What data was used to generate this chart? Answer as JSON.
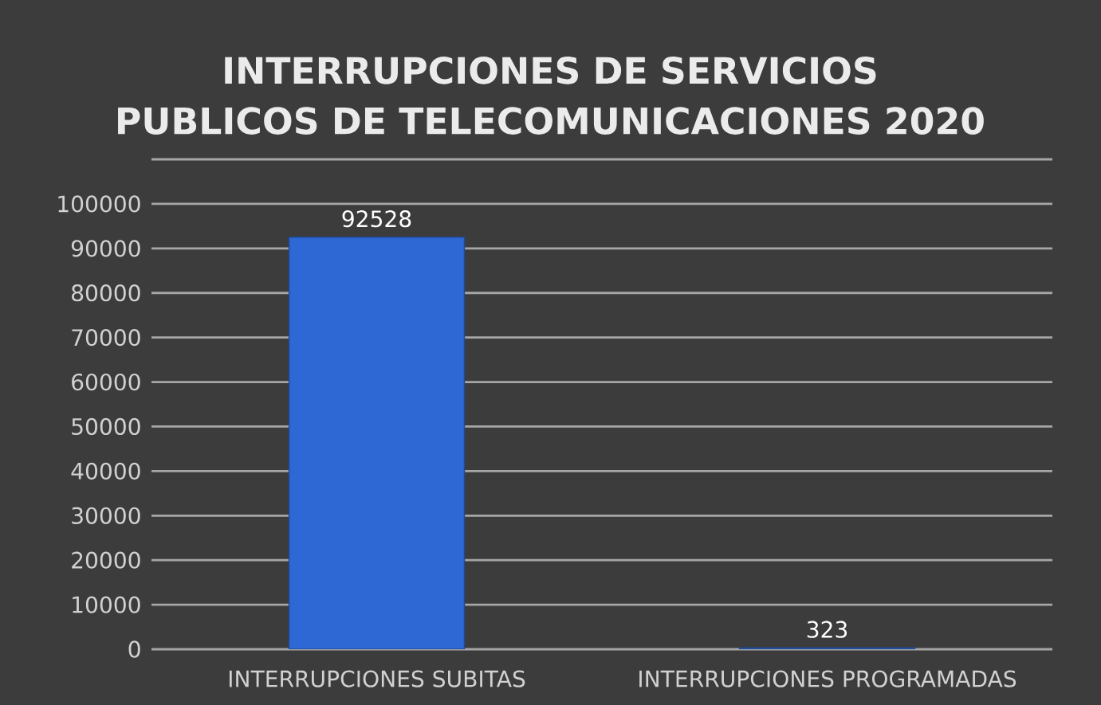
{
  "chart_data": {
    "type": "bar",
    "title": "INTERRUPCIONES DE SERVICIOS PUBLICOS DE TELECOMUNICACIONES 2020",
    "categories": [
      "INTERRUPCIONES SUBITAS",
      "INTERRUPCIONES PROGRAMADAS"
    ],
    "values": [
      92528,
      323
    ],
    "color": "#2e68d4",
    "ylim": [
      0,
      110000
    ],
    "yticks": [
      0,
      10000,
      20000,
      30000,
      40000,
      50000,
      60000,
      70000,
      80000,
      90000,
      100000,
      {
        "value": 110000,
        "label": null
      }
    ],
    "grid": "y",
    "data_labels": true
  }
}
